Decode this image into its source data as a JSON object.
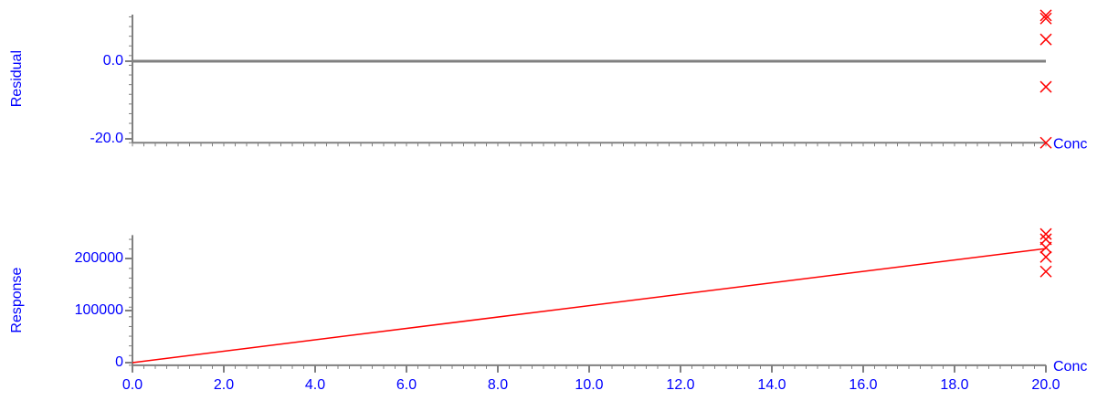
{
  "chart_data": [
    {
      "type": "scatter",
      "y_label": "Residual",
      "x_label": "Conc",
      "xlim": [
        0,
        20
      ],
      "ylim": [
        -21,
        12
      ],
      "yticks": [
        {
          "value": 0,
          "label": "0.0"
        },
        {
          "value": -20,
          "label": "-20.0"
        }
      ],
      "zero_line": true,
      "series": [
        {
          "color": "#ff0000",
          "style": "marker",
          "x": [
            20,
            20,
            20,
            20,
            20
          ],
          "values": [
            11.8,
            11,
            5.6,
            -6.6,
            -21
          ]
        }
      ]
    },
    {
      "type": "scatter",
      "y_label": "Response",
      "x_label": "Conc",
      "xlim": [
        0,
        20
      ],
      "ylim": [
        -5000,
        245000
      ],
      "yticks": [
        0,
        100000,
        200000
      ],
      "xticks": [
        {
          "value": 0,
          "label": "0.0"
        },
        {
          "value": 2,
          "label": "2.0"
        },
        {
          "value": 4,
          "label": "4.0"
        },
        {
          "value": 6,
          "label": "6.0"
        },
        {
          "value": 8,
          "label": "8.0"
        },
        {
          "value": 10,
          "label": "10.0"
        },
        {
          "value": 12,
          "label": "12.0"
        },
        {
          "value": 14,
          "label": "14.0"
        },
        {
          "value": 16,
          "label": "16.0"
        },
        {
          "value": 18,
          "label": "18.0"
        },
        {
          "value": 20,
          "label": "20.0"
        }
      ],
      "series": [
        {
          "color": "#ff0000",
          "style": "line",
          "x": [
            0,
            20
          ],
          "values": [
            0,
            219000
          ]
        },
        {
          "color": "#ff0000",
          "style": "marker",
          "x": [
            20,
            20,
            20,
            20,
            20
          ],
          "values": [
            247000,
            237000,
            221000,
            203000,
            175000
          ]
        }
      ]
    }
  ]
}
